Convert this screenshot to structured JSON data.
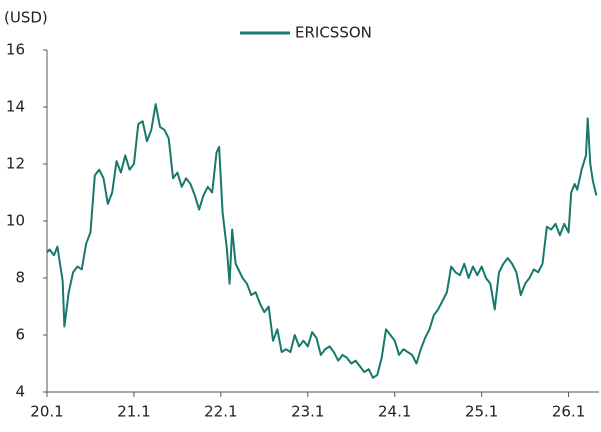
{
  "chart_data": {
    "type": "line",
    "y_label": "(USD)",
    "x": [
      2020.0,
      2020.03,
      2020.08,
      2020.12,
      2020.18,
      2020.2,
      2020.25,
      2020.3,
      2020.35,
      2020.4,
      2020.45,
      2020.5,
      2020.55,
      2020.6,
      2020.65,
      2020.7,
      2020.75,
      2020.8,
      2020.85,
      2020.9,
      2020.95,
      2021.0,
      2021.05,
      2021.1,
      2021.15,
      2021.2,
      2021.25,
      2021.3,
      2021.35,
      2021.4,
      2021.45,
      2021.5,
      2021.55,
      2021.6,
      2021.65,
      2021.7,
      2021.75,
      2021.8,
      2021.85,
      2021.9,
      2021.95,
      2021.98,
      2022.02,
      2022.07,
      2022.1,
      2022.13,
      2022.17,
      2022.25,
      2022.3,
      2022.35,
      2022.4,
      2022.45,
      2022.5,
      2022.55,
      2022.6,
      2022.65,
      2022.7,
      2022.75,
      2022.8,
      2022.85,
      2022.9,
      2022.95,
      2023.0,
      2023.05,
      2023.1,
      2023.15,
      2023.2,
      2023.25,
      2023.3,
      2023.35,
      2023.4,
      2023.45,
      2023.5,
      2023.55,
      2023.6,
      2023.65,
      2023.7,
      2023.75,
      2023.8,
      2023.85,
      2023.9,
      2023.95,
      2024.0,
      2024.05,
      2024.1,
      2024.15,
      2024.2,
      2024.25,
      2024.3,
      2024.35,
      2024.4,
      2024.45,
      2024.5,
      2024.55,
      2024.6,
      2024.65,
      2024.7,
      2024.75,
      2024.8,
      2024.85,
      2024.9,
      2024.95,
      2025.0,
      2025.05,
      2025.1,
      2025.15,
      2025.2,
      2025.25,
      2025.3,
      2025.35,
      2025.4,
      2025.45,
      2025.5,
      2025.55,
      2025.6,
      2025.65,
      2025.7,
      2025.75,
      2025.8,
      2025.85,
      2025.9,
      2025.95,
      2026.0,
      2026.03,
      2026.07,
      2026.1,
      2026.15,
      2026.2,
      2026.22,
      2026.25,
      2026.28,
      2026.32
    ],
    "series": [
      {
        "name": "ERICSSON",
        "color": "#17786c",
        "values": [
          8.9,
          9.0,
          8.8,
          9.1,
          7.9,
          6.3,
          7.5,
          8.2,
          8.4,
          8.3,
          9.2,
          9.6,
          11.6,
          11.8,
          11.5,
          10.6,
          11.0,
          12.1,
          11.7,
          12.3,
          11.8,
          12.0,
          13.4,
          13.5,
          12.8,
          13.2,
          14.1,
          13.3,
          13.2,
          12.9,
          11.5,
          11.7,
          11.2,
          11.5,
          11.3,
          10.9,
          10.4,
          10.9,
          11.2,
          11.0,
          12.4,
          12.6,
          10.3,
          9.0,
          7.8,
          9.7,
          8.5,
          8.0,
          7.8,
          7.4,
          7.5,
          7.1,
          6.8,
          7.0,
          5.8,
          6.2,
          5.4,
          5.5,
          5.4,
          6.0,
          5.6,
          5.8,
          5.6,
          6.1,
          5.9,
          5.3,
          5.5,
          5.6,
          5.4,
          5.1,
          5.3,
          5.2,
          5.0,
          5.1,
          4.9,
          4.7,
          4.8,
          4.5,
          4.6,
          5.2,
          6.2,
          6.0,
          5.8,
          5.3,
          5.5,
          5.4,
          5.3,
          5.0,
          5.5,
          5.9,
          6.2,
          6.7,
          6.9,
          7.2,
          7.5,
          8.4,
          8.2,
          8.1,
          8.5,
          8.0,
          8.4,
          8.1,
          8.4,
          8.0,
          7.8,
          6.9,
          8.2,
          8.5,
          8.7,
          8.5,
          8.2,
          7.4,
          7.8,
          8.0,
          8.3,
          8.2,
          8.5,
          9.8,
          9.7,
          9.9,
          9.5,
          9.9,
          9.6,
          11.0,
          11.3,
          11.1,
          11.8,
          12.3,
          13.6,
          12.0,
          11.4,
          10.9
        ]
      }
    ],
    "xlim": [
      2020,
      2026.35
    ],
    "xticks": [
      {
        "value": 2020,
        "label": "20.1"
      },
      {
        "value": 2021,
        "label": "21.1"
      },
      {
        "value": 2022,
        "label": "22.1"
      },
      {
        "value": 2023,
        "label": "23.1"
      },
      {
        "value": 2024,
        "label": "24.1"
      },
      {
        "value": 2025,
        "label": "25.1"
      },
      {
        "value": 2026,
        "label": "26.1"
      }
    ],
    "ylim": [
      4,
      16
    ],
    "yticks": [
      4,
      6,
      8,
      10,
      12,
      14,
      16
    ],
    "legend": "top"
  }
}
